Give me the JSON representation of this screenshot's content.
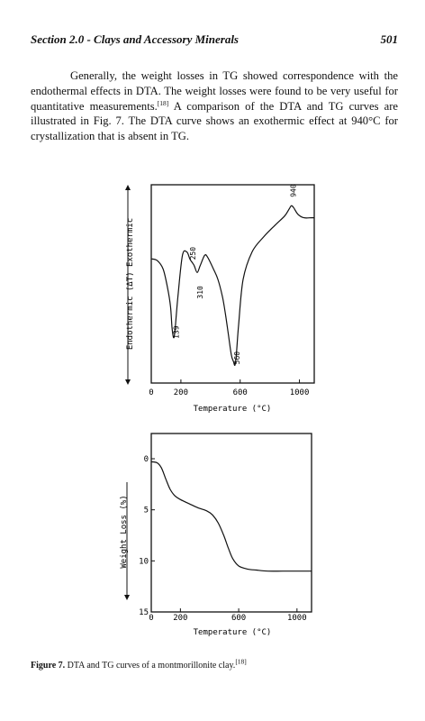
{
  "header": {
    "section_title": "Section 2.0 - Clays and Accessory Minerals",
    "page_number": "501"
  },
  "paragraph": {
    "text_1": "Generally, the weight losses in TG showed correspondence with the endothermal effects in DTA. The weight losses were found to be very useful for quantitative measurements.",
    "ref_1": "[18]",
    "text_2": " A comparison of the DTA and TG curves are illustrated in Fig. 7. The DTA curve shows an exothermic effect at 940°C for crystallization that is absent in TG."
  },
  "figure": {
    "caption_label": "Figure 7.",
    "caption_text": " DTA and TG curves of a montmorillonite clay.",
    "caption_ref": "[18]"
  },
  "chart_data": [
    {
      "type": "line",
      "name": "DTA",
      "xlabel": "Temperature (°C)",
      "ylabel": "Endothermic (ΔT) Exothermic",
      "xlim": [
        0,
        1100
      ],
      "x_ticks": [
        "0",
        "200",
        "600",
        "1000"
      ],
      "x_tick_values": [
        0,
        200,
        600,
        1000
      ],
      "series": [
        {
          "x": [
            0,
            40,
            80,
            110,
            130,
            140,
            150,
            160,
            180,
            210,
            240,
            260,
            275,
            290,
            310,
            330,
            360,
            380,
            420,
            450,
            480,
            500,
            520,
            540,
            555,
            565,
            575,
            590,
            620,
            680,
            760,
            840,
            900,
            930,
            945,
            960,
            990,
            1030,
            1080,
            1100
          ],
          "y": [
            62,
            61,
            56,
            45,
            34,
            22,
            16,
            20,
            40,
            64,
            66,
            62,
            60,
            58,
            54,
            58,
            64,
            63,
            56,
            50,
            40,
            30,
            18,
            6,
            2,
            0,
            7,
            24,
            50,
            66,
            75,
            82,
            87,
            91,
            93,
            92,
            88,
            86,
            86,
            86
          ]
        }
      ],
      "peak_labels": [
        {
          "text": "139",
          "x": 150
        },
        {
          "text": "250",
          "x": 260
        },
        {
          "text": "310",
          "x": 310
        },
        {
          "text": "560",
          "x": 560
        },
        {
          "text": "940",
          "x": 940
        }
      ]
    },
    {
      "type": "line",
      "name": "TG",
      "xlabel": "Temperature (°C)",
      "ylabel": "Weight Loss (%)",
      "xlim": [
        0,
        1100
      ],
      "ylim": [
        0,
        15
      ],
      "x_ticks": [
        "0",
        "200",
        "600",
        "1000"
      ],
      "x_tick_values": [
        0,
        200,
        600,
        1000
      ],
      "y_ticks": [
        "0",
        "5",
        "10",
        "15"
      ],
      "y_tick_values": [
        0,
        5,
        10,
        15
      ],
      "series": [
        {
          "x": [
            0,
            40,
            70,
            100,
            130,
            160,
            200,
            260,
            320,
            380,
            420,
            460,
            500,
            530,
            560,
            600,
            660,
            720,
            800,
            900,
            1000,
            1100
          ],
          "y": [
            0.3,
            0.4,
            0.9,
            2.0,
            3.0,
            3.6,
            4.0,
            4.4,
            4.8,
            5.1,
            5.5,
            6.3,
            7.6,
            8.8,
            9.8,
            10.5,
            10.8,
            10.9,
            11.0,
            11.0,
            11.0,
            11.0
          ]
        }
      ]
    }
  ]
}
